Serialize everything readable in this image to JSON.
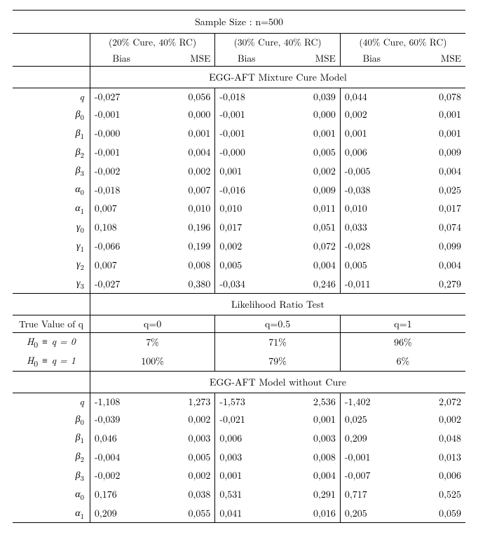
{
  "header": {
    "title": "Sample Size : n=500",
    "scenarios": [
      "(20% Cure, 40% RC)",
      "(30% Cure, 40% RC)",
      "(40% Cure, 60% RC)"
    ],
    "col_labels": [
      "Bias",
      "MSE"
    ]
  },
  "sections": {
    "mixture": "EGG-AFT Mixture Cure Model",
    "lrt": "Likelihood Ratio Test",
    "nocure": "EGG-AFT Model without Cure"
  },
  "params": {
    "q": "q",
    "b0": "β",
    "b0_sub": "0",
    "b1": "β",
    "b1_sub": "1",
    "b2": "β",
    "b2_sub": "2",
    "b3": "β",
    "b3_sub": "3",
    "a0": "α",
    "a0_sub": "0",
    "a1": "α",
    "a1_sub": "1",
    "g0": "γ",
    "g0_sub": "0",
    "g1": "γ",
    "g1_sub": "1",
    "g2": "γ",
    "g2_sub": "2",
    "g3": "γ",
    "g3_sub": "3"
  },
  "mixture": {
    "q": {
      "s1b": "-0,027",
      "s1m": "0,056",
      "s2b": "-0,018",
      "s2m": "0,039",
      "s3b": "0,044",
      "s3m": "0,078"
    },
    "b0": {
      "s1b": "-0,001",
      "s1m": "0,000",
      "s2b": "-0,001",
      "s2m": "0,000",
      "s3b": "0,002",
      "s3m": "0,001"
    },
    "b1": {
      "s1b": "-0,000",
      "s1m": "0,001",
      "s2b": "-0,001",
      "s2m": "0,001",
      "s3b": "0,001",
      "s3m": "0,001"
    },
    "b2": {
      "s1b": "-0,001",
      "s1m": "0,004",
      "s2b": "-0,000",
      "s2m": "0,005",
      "s3b": "0,006",
      "s3m": "0,009"
    },
    "b3": {
      "s1b": "-0,002",
      "s1m": "0,002",
      "s2b": "0,001",
      "s2m": "0,002",
      "s3b": "-0,005",
      "s3m": "0,004"
    },
    "a0": {
      "s1b": "-0,018",
      "s1m": "0,007",
      "s2b": "-0,016",
      "s2m": "0,009",
      "s3b": "-0,038",
      "s3m": "0,025"
    },
    "a1": {
      "s1b": "0,007",
      "s1m": "0,010",
      "s2b": "0,010",
      "s2m": "0,011",
      "s3b": "0,010",
      "s3m": "0,017"
    },
    "g0": {
      "s1b": "0,108",
      "s1m": "0,196",
      "s2b": "0,017",
      "s2m": "0,051",
      "s3b": "0,033",
      "s3m": "0,074"
    },
    "g1": {
      "s1b": "-0,066",
      "s1m": "0,199",
      "s2b": "0,002",
      "s2m": "0,072",
      "s3b": "-0,028",
      "s3m": "0,099"
    },
    "g2": {
      "s1b": "0,007",
      "s1m": "0,008",
      "s2b": "0,005",
      "s2m": "0,004",
      "s3b": "0,005",
      "s3m": "0,004"
    },
    "g3": {
      "s1b": "-0,027",
      "s1m": "0,380",
      "s2b": "-0,034",
      "s2m": "0,246",
      "s3b": "-0,011",
      "s3m": "0,279"
    }
  },
  "lrt": {
    "header_label": "True Value of q",
    "cols": [
      "q=0",
      "q=0.5",
      "q=1"
    ],
    "rows": [
      {
        "label": "H",
        "sub": "0",
        "rest": " ≡ q = 0",
        "v1": "7%",
        "v2": "71%",
        "v3": "96%"
      },
      {
        "label": "H",
        "sub": "0",
        "rest": " ≡ q = 1",
        "v1": "100%",
        "v2": "79%",
        "v3": "6%"
      }
    ]
  },
  "nocure": {
    "q": {
      "s1b": "-1,108",
      "s1m": "1,273",
      "s2b": "-1,573",
      "s2m": "2,536",
      "s3b": "-1,402",
      "s3m": "2,072"
    },
    "b0": {
      "s1b": "-0,039",
      "s1m": "0,002",
      "s2b": "-0,021",
      "s2m": "0,001",
      "s3b": "0,025",
      "s3m": "0,002"
    },
    "b1": {
      "s1b": "0,046",
      "s1m": "0,003",
      "s2b": "0,006",
      "s2m": "0,003",
      "s3b": "0,209",
      "s3m": "0,048"
    },
    "b2": {
      "s1b": "-0,004",
      "s1m": "0,005",
      "s2b": "0,003",
      "s2m": "0,008",
      "s3b": "-0,001",
      "s3m": "0,013"
    },
    "b3": {
      "s1b": "-0,002",
      "s1m": "0,002",
      "s2b": "0,001",
      "s2m": "0,004",
      "s3b": "-0,007",
      "s3m": "0,006"
    },
    "a0": {
      "s1b": "0,176",
      "s1m": "0,038",
      "s2b": "0,531",
      "s2m": "0,291",
      "s3b": "0,717",
      "s3m": "0,525"
    },
    "a1": {
      "s1b": "0,209",
      "s1m": "0,055",
      "s2b": "0,041",
      "s2m": "0,016",
      "s3b": "0,205",
      "s3m": "0,059"
    }
  }
}
